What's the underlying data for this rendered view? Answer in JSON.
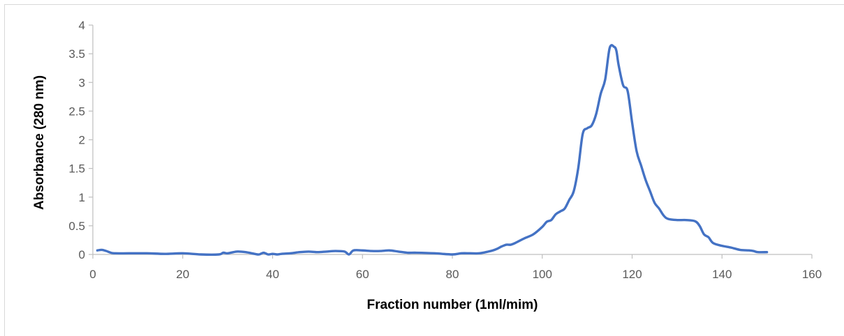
{
  "chart_data": {
    "type": "line",
    "title": "",
    "xlabel": "Fraction number (1ml/mim)",
    "ylabel": "Absorbance (280 nm)",
    "xlim": [
      0,
      160
    ],
    "ylim": [
      0,
      4
    ],
    "x_ticks": [
      0,
      20,
      40,
      60,
      80,
      100,
      120,
      140,
      160
    ],
    "y_ticks": [
      0,
      0.5,
      1,
      1.5,
      2,
      2.5,
      3,
      3.5,
      4
    ],
    "x_tick_labels": [
      "0",
      "20",
      "40",
      "60",
      "80",
      "100",
      "120",
      "140",
      "160"
    ],
    "y_tick_labels": [
      "0",
      "0.5",
      "1",
      "1.5",
      "2",
      "2.5",
      "3",
      "3.5",
      "4"
    ],
    "grid": false,
    "legend": "none",
    "series": [
      {
        "color": "#4472c4",
        "x": [
          1,
          2,
          3,
          4,
          5,
          8,
          12,
          16,
          20,
          24,
          28,
          29,
          30,
          32,
          34,
          36,
          37,
          38,
          39,
          40,
          41,
          42,
          44,
          46,
          48,
          50,
          52,
          54,
          56,
          57,
          58,
          60,
          62,
          64,
          66,
          68,
          70,
          72,
          76,
          80,
          82,
          84,
          86,
          88,
          89,
          90,
          91,
          92,
          93,
          94,
          96,
          98,
          100,
          101,
          102,
          103,
          104,
          105,
          106,
          107,
          108,
          109,
          110,
          111,
          112,
          113,
          114,
          115,
          116,
          116.5,
          117,
          118,
          119,
          120,
          121,
          122,
          123,
          124,
          125,
          126,
          127,
          128,
          130,
          132,
          134,
          135,
          136,
          137,
          138,
          140,
          142,
          144,
          146,
          147,
          148,
          150
        ],
        "values": [
          0.07,
          0.08,
          0.06,
          0.03,
          0.02,
          0.02,
          0.02,
          0.01,
          0.02,
          0.0,
          0.0,
          0.03,
          0.02,
          0.05,
          0.04,
          0.01,
          0.0,
          0.03,
          0.0,
          0.01,
          0.0,
          0.01,
          0.02,
          0.04,
          0.05,
          0.04,
          0.05,
          0.06,
          0.05,
          0.0,
          0.07,
          0.07,
          0.06,
          0.06,
          0.07,
          0.05,
          0.03,
          0.03,
          0.02,
          0.0,
          0.02,
          0.02,
          0.02,
          0.05,
          0.07,
          0.1,
          0.14,
          0.17,
          0.17,
          0.2,
          0.28,
          0.35,
          0.48,
          0.57,
          0.6,
          0.7,
          0.75,
          0.8,
          0.95,
          1.1,
          1.5,
          2.1,
          2.2,
          2.25,
          2.45,
          2.8,
          3.05,
          3.6,
          3.62,
          3.55,
          3.3,
          2.95,
          2.85,
          2.3,
          1.8,
          1.55,
          1.3,
          1.1,
          0.9,
          0.8,
          0.68,
          0.62,
          0.6,
          0.6,
          0.58,
          0.5,
          0.35,
          0.3,
          0.2,
          0.15,
          0.12,
          0.08,
          0.07,
          0.06,
          0.04,
          0.04
        ]
      }
    ]
  }
}
